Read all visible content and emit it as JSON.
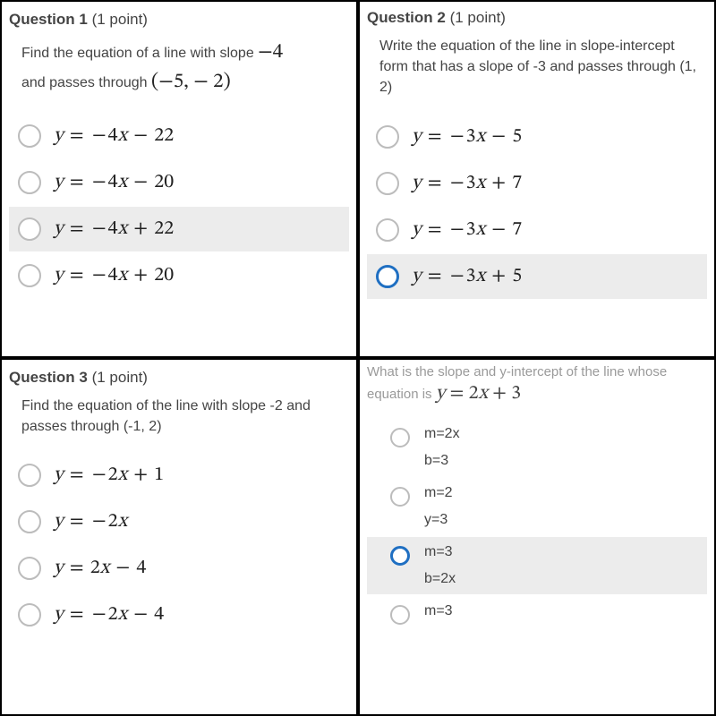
{
  "q1": {
    "header": "Question 1",
    "points": "(1 point)",
    "prompt_pre": "Find the equation of a line with slope ",
    "prompt_slope": "−4",
    "prompt_mid": "and passes through ",
    "prompt_point": "(−5,  − 2)",
    "choices": [
      {
        "label": "y = −4x − 22",
        "highlight": false,
        "selected": false
      },
      {
        "label": "y = −4x − 20",
        "highlight": false,
        "selected": false
      },
      {
        "label": "y = −4x + 22",
        "highlight": true,
        "selected": false
      },
      {
        "label": "y = −4x + 20",
        "highlight": false,
        "selected": false
      }
    ]
  },
  "q2": {
    "header": "Question 2",
    "points": "(1 point)",
    "prompt": "Write the equation of the line in slope-intercept form that has a slope of -3 and passes through (1, 2)",
    "choices": [
      {
        "label": "y = −3x − 5",
        "highlight": false,
        "selected": false
      },
      {
        "label": "y = −3x + 7",
        "highlight": false,
        "selected": false
      },
      {
        "label": "y = −3x − 7",
        "highlight": false,
        "selected": false
      },
      {
        "label": "y = −3x + 5",
        "highlight": true,
        "selected": true
      }
    ]
  },
  "q3": {
    "header": "Question 3",
    "points": "(1 point)",
    "prompt": "Find the equation of the line with slope -2 and passes through (-1, 2)",
    "choices": [
      {
        "label": "y = −2x + 1",
        "highlight": false,
        "selected": false
      },
      {
        "label": "y = −2x",
        "highlight": false,
        "selected": false
      },
      {
        "label": "y = 2x − 4",
        "highlight": false,
        "selected": false
      },
      {
        "label": "y = −2x − 4",
        "highlight": false,
        "selected": false
      }
    ]
  },
  "q4": {
    "prompt_pre": "What is the slope and y-intercept of the line whose equation is ",
    "prompt_eq": "y = 2x + 3",
    "choices": [
      {
        "lines": [
          "m=2x",
          "b=3"
        ],
        "highlight": false,
        "selected": false
      },
      {
        "lines": [
          "m=2",
          "y=3"
        ],
        "highlight": false,
        "selected": false
      },
      {
        "lines": [
          "m=3",
          "b=2x"
        ],
        "highlight": true,
        "selected": true
      },
      {
        "lines": [
          "m=3"
        ],
        "highlight": false,
        "selected": false
      }
    ]
  },
  "colors": {
    "highlight_bg": "#ececec",
    "radio_border": "#bcbcbc",
    "radio_selected": "#1f6fc2",
    "text": "#444444",
    "faded_text": "#9a9a9a"
  }
}
